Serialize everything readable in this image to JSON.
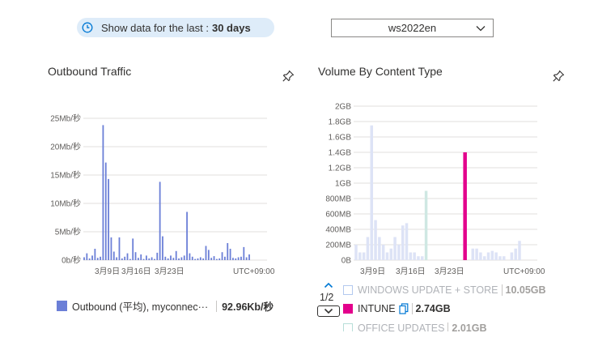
{
  "time_range": {
    "label": "Show data for the last :",
    "value": "30 days",
    "icon": "clock-icon"
  },
  "workspace_select": {
    "value": "ws2022en",
    "icon": "chevron-down-icon"
  },
  "tiles": {
    "outbound": {
      "title": "Outbound Traffic",
      "pin_icon": "pin-icon"
    },
    "volume": {
      "title": "Volume By Content Type",
      "pin_icon": "pin-icon"
    }
  },
  "colors": {
    "outbound": "#6b7fd7",
    "intune": "#e3008c",
    "windows_update": "#dde3f6",
    "office": "#cfe8e3",
    "pill_bg": "#deecf9"
  },
  "chart_data": [
    {
      "type": "bar",
      "title": "Outbound Traffic",
      "y_ticks": [
        "0b/秒",
        "5Mb/秒",
        "10Mb/秒",
        "15Mb/秒",
        "20Mb/秒",
        "25Mb/秒"
      ],
      "ylim": [
        0,
        25
      ],
      "x_ticks": [
        "3月9日",
        "3月16日",
        "3月23日"
      ],
      "timezone": "UTC+09:00",
      "grid": true,
      "series": [
        {
          "name": "Outbound (平均), myconnec···",
          "values": [
            0.5,
            1.2,
            0.3,
            0.8,
            2.0,
            0.4,
            0.6,
            23.8,
            17.2,
            14.3,
            4.0,
            1.5,
            0.5,
            4.0,
            0.3,
            0.6,
            1.2,
            0.2,
            3.8,
            1.4,
            0.4,
            1.0,
            0.2,
            0.8,
            0.3,
            0.5,
            0.2,
            1.3,
            13.8,
            4.2,
            0.6,
            0.3,
            0.8,
            0.4,
            1.6,
            0.3,
            0.5,
            0.8,
            8.5,
            1.2,
            0.6,
            0.2,
            0.3,
            0.5,
            0.3,
            2.5,
            1.8,
            0.4,
            0.7,
            0.2,
            0.3,
            1.4,
            0.6,
            3.0,
            2.0,
            0.4,
            0.3,
            0.5,
            0.6,
            2.3,
            0.5,
            1.0
          ]
        }
      ],
      "legend_value": "92.96Kb/秒"
    },
    {
      "type": "bar",
      "title": "Volume By Content Type",
      "y_ticks": [
        "0B",
        "200MB",
        "400MB",
        "600MB",
        "800MB",
        "1GB",
        "1.2GB",
        "1.4GB",
        "1.6GB",
        "1.8GB",
        "2GB"
      ],
      "ylim": [
        0,
        2
      ],
      "x_ticks": [
        "3月9日",
        "3月16日",
        "3月23日"
      ],
      "timezone": "UTC+09:00",
      "grid": true,
      "series": [
        {
          "name": "WINDOWS UPDATE + STORE",
          "values": [
            0.2,
            0.1,
            0.1,
            0.3,
            1.75,
            0.52,
            0.3,
            0.2,
            0.1,
            0.15,
            0.3,
            0.2,
            0.45,
            0.48,
            0.1,
            0.1,
            0.05,
            0.05,
            0,
            0,
            0,
            0,
            0,
            0,
            0,
            0,
            0,
            0,
            0,
            0,
            0.15,
            0.15,
            0.1,
            0.05,
            0.1,
            0.12,
            0.1,
            0.05,
            0.05,
            0,
            0.1,
            0.15,
            0.25
          ]
        },
        {
          "name": "OFFICE UPDATES",
          "values": [
            0,
            0,
            0,
            0,
            0,
            0,
            0,
            0,
            0,
            0,
            0,
            0,
            0,
            0,
            0,
            0,
            0,
            0,
            0.9,
            0,
            0,
            0,
            0,
            0,
            0,
            0,
            0,
            0,
            0,
            0,
            0,
            0,
            0,
            0,
            0,
            0,
            0,
            0,
            0,
            0,
            0,
            0,
            0
          ]
        },
        {
          "name": "INTUNE",
          "values": [
            0,
            0,
            0,
            0,
            0,
            0,
            0,
            0,
            0,
            0,
            0,
            0,
            0,
            0,
            0,
            0,
            0,
            0,
            0,
            0,
            0,
            0,
            0,
            0,
            0,
            0,
            0,
            0,
            1.4,
            0,
            0,
            0,
            0,
            0,
            0,
            0,
            0,
            0,
            0,
            0,
            0,
            0,
            0
          ]
        }
      ]
    }
  ],
  "legend2": {
    "page": "1/2",
    "up_icon": "chevron-up-icon",
    "down_icon": "chevron-down-icon",
    "items": [
      {
        "name": "WINDOWS UPDATE + STORE",
        "value": "10.05GB"
      },
      {
        "name": "INTUNE",
        "value": "2.74GB",
        "icon": "copy-icon"
      },
      {
        "name": "OFFICE UPDATES",
        "value": "2.01GB"
      }
    ]
  }
}
